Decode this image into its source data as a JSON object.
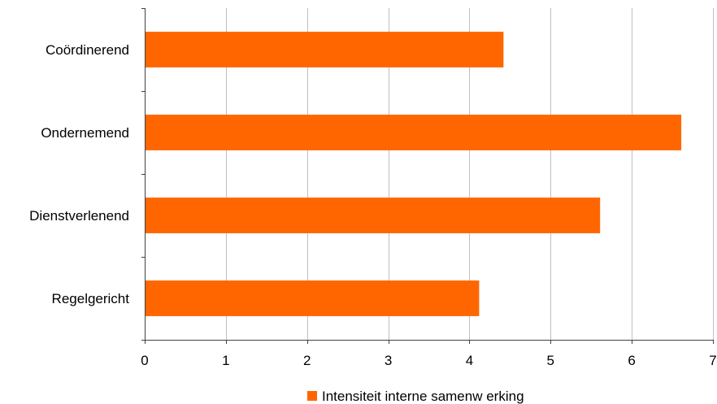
{
  "chart_data": {
    "type": "bar",
    "orientation": "horizontal",
    "categories": [
      "Coördinerend",
      "Ondernemend",
      "Dienstverlenend",
      "Regelgericht"
    ],
    "series": [
      {
        "name": "Intensiteit interne samenw erking",
        "values": [
          4.42,
          6.61,
          5.61,
          4.12
        ],
        "color": "#ff6600"
      }
    ],
    "xlim": [
      0,
      7
    ],
    "xticks": [
      0,
      1,
      2,
      3,
      4,
      5,
      6,
      7
    ],
    "grid": "vertical",
    "legend": "bottom-center"
  }
}
